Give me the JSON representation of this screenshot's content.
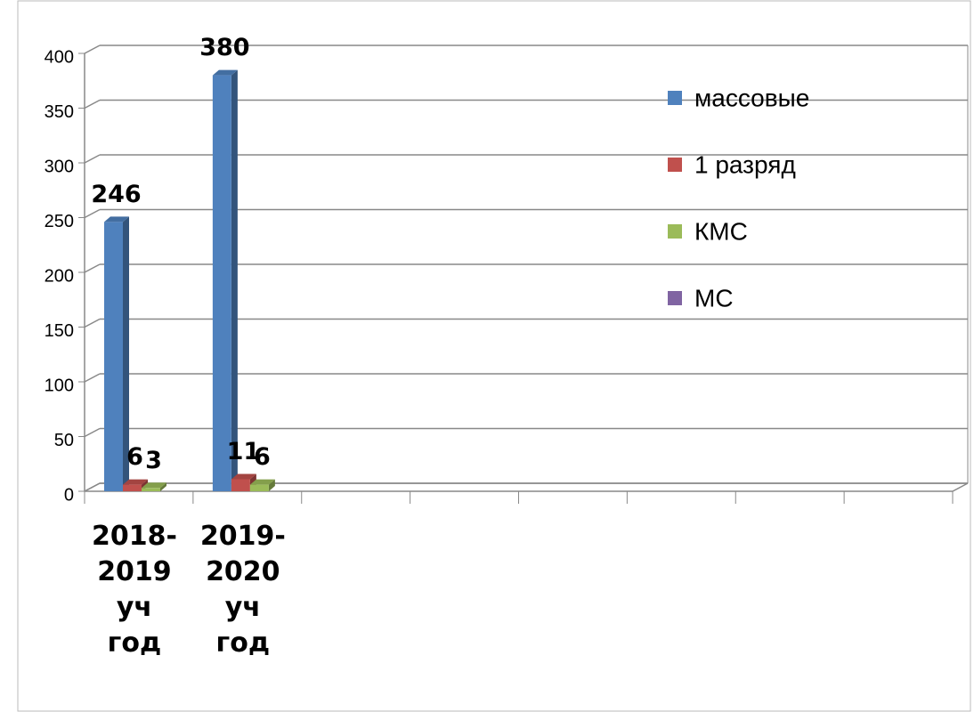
{
  "chart_data": {
    "type": "bar3d",
    "categories": [
      "2018-2019 уч год",
      "2019-2020 уч год",
      null,
      null,
      null,
      null,
      null,
      null
    ],
    "series": [
      {
        "name": "массовые",
        "color": "#4f81bd",
        "values": [
          246,
          380,
          null,
          null,
          null,
          null,
          null,
          null
        ]
      },
      {
        "name": "1 разряд",
        "color": "#c0504d",
        "values": [
          6,
          11,
          null,
          null,
          null,
          null,
          null,
          null
        ]
      },
      {
        "name": "КМС",
        "color": "#9bbb59",
        "values": [
          3,
          6,
          null,
          null,
          null,
          null,
          null,
          null
        ]
      },
      {
        "name": "МС",
        "color": "#8064a2",
        "values": [
          null,
          null,
          null,
          null,
          null,
          null,
          null,
          null
        ]
      }
    ],
    "ylim": [
      0,
      400
    ],
    "yticks": [
      0,
      50,
      100,
      150,
      200,
      250,
      300,
      350,
      400
    ],
    "grid": true,
    "legend": "right"
  }
}
